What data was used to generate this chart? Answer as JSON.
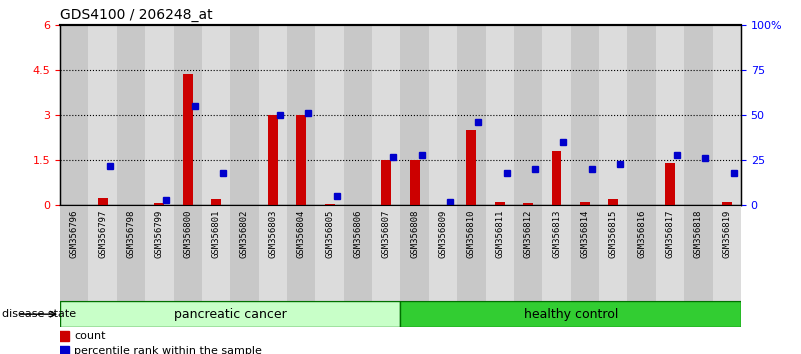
{
  "title": "GDS4100 / 206248_at",
  "samples": [
    "GSM356796",
    "GSM356797",
    "GSM356798",
    "GSM356799",
    "GSM356800",
    "GSM356801",
    "GSM356802",
    "GSM356803",
    "GSM356804",
    "GSM356805",
    "GSM356806",
    "GSM356807",
    "GSM356808",
    "GSM356809",
    "GSM356810",
    "GSM356811",
    "GSM356812",
    "GSM356813",
    "GSM356814",
    "GSM356815",
    "GSM356816",
    "GSM356817",
    "GSM356818",
    "GSM356819"
  ],
  "count_values": [
    0.0,
    0.25,
    0.0,
    0.08,
    4.35,
    0.2,
    0.0,
    3.0,
    3.0,
    0.05,
    0.0,
    1.5,
    1.5,
    0.0,
    2.5,
    0.12,
    0.08,
    1.8,
    0.12,
    0.2,
    0.0,
    1.4,
    0.0,
    0.12
  ],
  "percentile_values": [
    0,
    22,
    0,
    3,
    55,
    18,
    0,
    50,
    51,
    5,
    0,
    27,
    28,
    2,
    46,
    18,
    20,
    35,
    20,
    23,
    0,
    28,
    26,
    18
  ],
  "pc_count": 12,
  "hc_count": 12,
  "bar_color": "#CC0000",
  "dot_color": "#0000CC",
  "ylim_left": [
    0,
    6
  ],
  "ylim_right": [
    0,
    100
  ],
  "yticks_left": [
    0,
    1.5,
    3.0,
    4.5,
    6.0
  ],
  "yticks_left_labels": [
    "0",
    "1.5",
    "3",
    "4.5",
    "6"
  ],
  "yticks_right": [
    0,
    25,
    50,
    75,
    100
  ],
  "yticks_right_labels": [
    "0",
    "25",
    "50",
    "75",
    "100%"
  ],
  "cell_colors": [
    "#C8C8C8",
    "#DCDCDC"
  ],
  "pc_color_light": "#C8FFC8",
  "hc_color_dark": "#32CD32",
  "group_border_color": "#007000"
}
